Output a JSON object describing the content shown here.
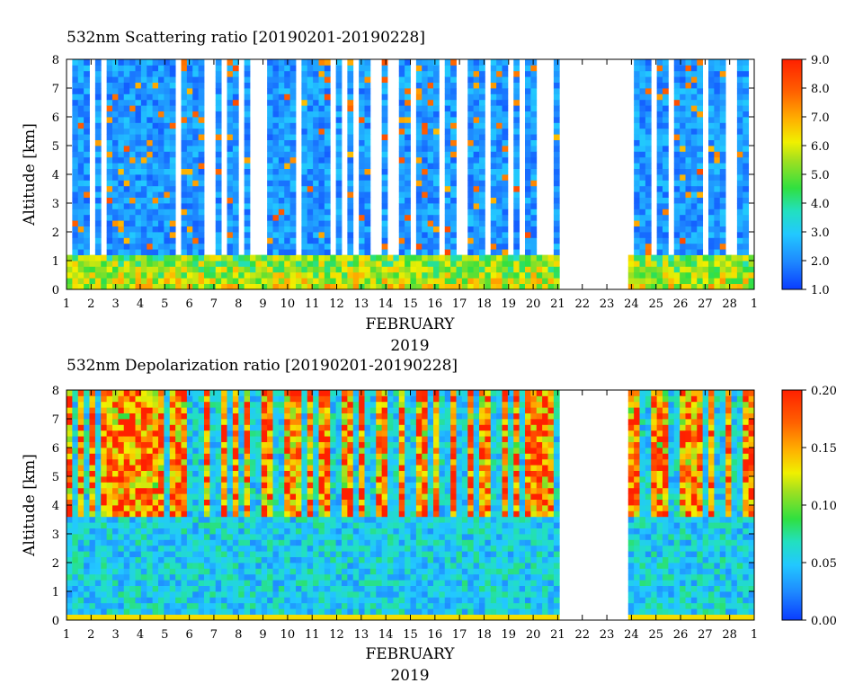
{
  "chart_data": [
    {
      "type": "heatmap",
      "title": "532nm Scattering ratio [20190201-20190228]",
      "xlabel": "FEBRUARY",
      "xlabel2": "2019",
      "ylabel": "Altitude [km]",
      "x_ticks": [
        "1",
        "2",
        "3",
        "4",
        "5",
        "6",
        "7",
        "8",
        "9",
        "10",
        "11",
        "12",
        "13",
        "14",
        "15",
        "16",
        "17",
        "18",
        "19",
        "20",
        "21",
        "22",
        "23",
        "24",
        "25",
        "26",
        "27",
        "28",
        "1"
      ],
      "y_ticks": [
        "0",
        "1",
        "2",
        "3",
        "4",
        "5",
        "6",
        "7",
        "8"
      ],
      "xlim": [
        1,
        29
      ],
      "ylim": [
        0,
        8
      ],
      "colorbar": {
        "range": [
          1.0,
          9.0
        ],
        "ticks": [
          "1.0",
          "2.0",
          "3.0",
          "4.0",
          "5.0",
          "6.0",
          "7.0",
          "8.0",
          "9.0"
        ],
        "colors": [
          "#0a3cff",
          "#1e88ff",
          "#22c8ff",
          "#22e0c0",
          "#30e040",
          "#a0e020",
          "#f0f000",
          "#ffb000",
          "#ff6000",
          "#ff2000"
        ]
      },
      "data_gap": [
        21.2,
        23.8
      ],
      "background_color": "#ffffff",
      "grid": false
    },
    {
      "type": "heatmap",
      "title": "532nm Depolarization ratio [20190201-20190228]",
      "xlabel": "FEBRUARY",
      "xlabel2": "2019",
      "ylabel": "Altitude [km]",
      "x_ticks": [
        "1",
        "2",
        "3",
        "4",
        "5",
        "6",
        "7",
        "8",
        "9",
        "10",
        "11",
        "12",
        "13",
        "14",
        "15",
        "16",
        "17",
        "18",
        "19",
        "20",
        "21",
        "22",
        "23",
        "24",
        "25",
        "26",
        "27",
        "28",
        "1"
      ],
      "y_ticks": [
        "0",
        "1",
        "2",
        "3",
        "4",
        "5",
        "6",
        "7",
        "8"
      ],
      "xlim": [
        1,
        29
      ],
      "ylim": [
        0,
        8
      ],
      "colorbar": {
        "range": [
          0.0,
          0.2
        ],
        "ticks": [
          "0.00",
          "0.05",
          "0.10",
          "0.15",
          "0.20"
        ],
        "colors": [
          "#0a3cff",
          "#1e88ff",
          "#22c8ff",
          "#22e0c0",
          "#30e040",
          "#a0e020",
          "#f0f000",
          "#ffb000",
          "#ff6000",
          "#ff2000"
        ]
      },
      "data_gap": [
        21.2,
        23.8
      ],
      "background_color": "#ffffff",
      "grid": false
    }
  ]
}
